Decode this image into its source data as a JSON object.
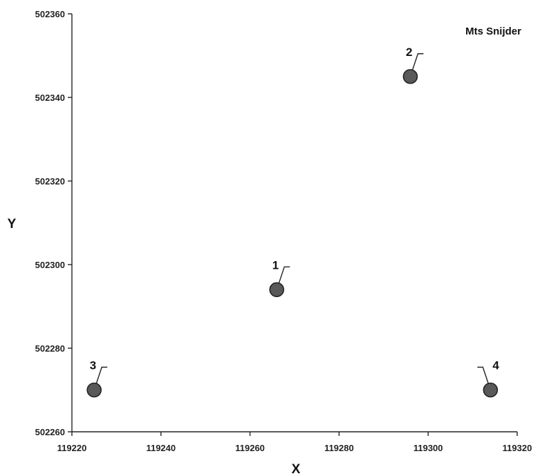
{
  "chart_data": {
    "type": "scatter",
    "title": "Mts Snijder",
    "xlabel": "X",
    "ylabel": "Y",
    "xlim": [
      119220,
      119320
    ],
    "ylim": [
      502260,
      502360
    ],
    "x_ticks": [
      "119220",
      "119240",
      "119260",
      "119280",
      "119300",
      "119320"
    ],
    "y_ticks": [
      "502260",
      "502280",
      "502300",
      "502320",
      "502340",
      "502360"
    ],
    "grid": false,
    "legend": "none",
    "points": [
      {
        "label": "1",
        "x": 119266,
        "y": 502294,
        "label_side": "right"
      },
      {
        "label": "2",
        "x": 119296,
        "y": 502345,
        "label_side": "right"
      },
      {
        "label": "3",
        "x": 119225,
        "y": 502270,
        "label_side": "right"
      },
      {
        "label": "4",
        "x": 119314,
        "y": 502270,
        "label_side": "left"
      }
    ],
    "marker_color": "#595959"
  }
}
